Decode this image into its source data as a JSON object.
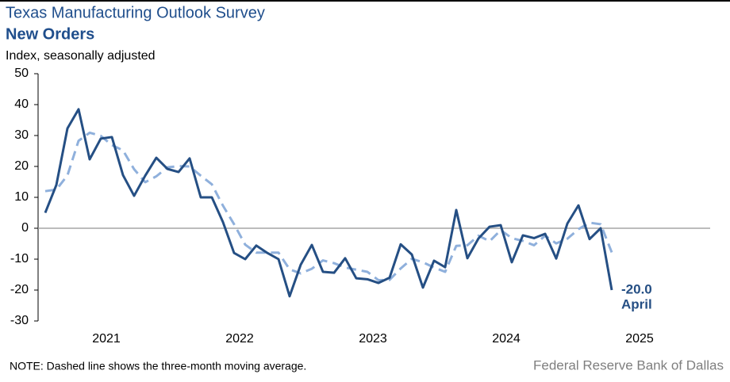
{
  "chart_data": {
    "type": "line",
    "title": "Texas Manufacturing Outlook Survey",
    "subtitle": "New Orders",
    "y_label": "Index, seasonally adjusted",
    "note": "NOTE: Dashed line shows the three-month  moving average.",
    "source": "Federal Reserve Bank of Dallas",
    "categories": [
      null,
      null,
      null,
      null,
      null,
      null,
      null,
      null,
      null,
      null,
      null,
      null,
      null,
      null,
      null,
      null,
      null,
      null,
      null,
      null,
      null,
      null,
      null,
      null,
      null,
      null,
      null,
      null,
      null,
      null,
      null,
      null,
      null,
      null,
      null,
      null,
      null,
      null,
      null,
      null,
      null,
      null,
      null,
      null,
      null,
      null,
      null,
      null,
      null,
      null,
      null,
      null
    ],
    "year_labels": [
      "2021",
      "2022",
      "2023",
      "2024",
      "2025"
    ],
    "series": [
      {
        "name": "New Orders",
        "color": "#254f84",
        "dashed": false,
        "values": [
          5,
          14,
          32.3,
          38.5,
          22.3,
          29,
          29.5,
          17.2,
          10.5,
          17,
          22.8,
          19.2,
          18.2,
          22.6,
          10,
          10,
          2,
          -8,
          -10,
          -5.6,
          -8,
          -10,
          -22,
          -11.8,
          -5.4,
          -14.1,
          -14.4,
          -9.7,
          -16.2,
          -16.5,
          -17.7,
          -16,
          -5.2,
          -8.5,
          -19.2,
          -10.5,
          -12.6,
          5.9,
          -9.7,
          -3.3,
          0.5,
          1,
          -11,
          -2.3,
          -3.2,
          -1.8,
          -9.8,
          1.5,
          7.4,
          -3.5,
          0,
          -20
        ]
      },
      {
        "name": "Three-month moving average",
        "color": "#8fb0dc",
        "dashed": true,
        "values": [
          12,
          12.5,
          17.1,
          28.3,
          30.9,
          29.9,
          26.9,
          25.2,
          19.1,
          14.9,
          16.8,
          19.7,
          20.1,
          20,
          17,
          14.2,
          7.3,
          1.3,
          -5.3,
          -7.9,
          -7.9,
          -7.9,
          -13.3,
          -14.6,
          -13.1,
          -10.4,
          -11.3,
          -12.7,
          -13.4,
          -14.1,
          -16.8,
          -16.7,
          -13,
          -9.9,
          -11,
          -12.7,
          -14.1,
          -5.7,
          -5.5,
          -2.4,
          -4.2,
          -0.6,
          -3.2,
          -4.1,
          -5.5,
          -2.4,
          -4.9,
          -3.4,
          -0.3,
          1.8,
          1.3,
          -7.8
        ]
      }
    ],
    "annotation": {
      "value_label": "-20.0",
      "label": "April"
    },
    "ylim": [
      -30,
      50
    ],
    "yticks": [
      -30,
      -20,
      -10,
      0,
      10,
      20,
      30,
      40,
      50
    ]
  }
}
